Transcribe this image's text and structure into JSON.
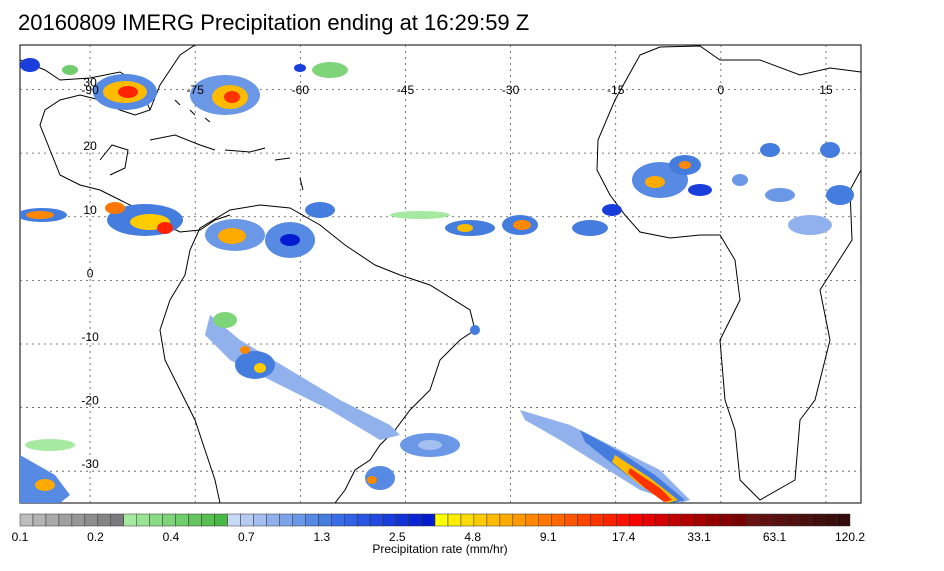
{
  "title": "20160809 IMERG Precipitation ending at 16:29:59 Z",
  "map": {
    "lon_range": [
      -100,
      20
    ],
    "lat_range": [
      -35,
      37
    ],
    "lon_grid": [
      -90,
      -75,
      -60,
      -45,
      -30,
      -15,
      0,
      15
    ],
    "lon_labels": [
      "-90",
      "-75",
      "-60",
      "-45",
      "-30",
      "-15",
      "0",
      "15"
    ],
    "lat_grid": [
      30,
      20,
      10,
      0,
      -10,
      -20,
      -30
    ],
    "lat_labels": [
      "30",
      "20",
      "10",
      "0",
      "-10",
      "-20",
      "-30"
    ],
    "grid": true,
    "grid_style": "dotted",
    "coastline_color": "#000000",
    "ocean_color": "#ffffff",
    "precip_regions": [
      {
        "name": "gulf-of-mexico-storms",
        "level": 3
      },
      {
        "name": "western-atlantic-storms",
        "level": 3
      },
      {
        "name": "central-america-storms",
        "level": 3
      },
      {
        "name": "itcz-atlantic",
        "level": 2
      },
      {
        "name": "west-africa-storms",
        "level": 3
      },
      {
        "name": "amazon-storms",
        "level": 2
      },
      {
        "name": "south-america-band",
        "level": 2
      },
      {
        "name": "south-atlantic-front",
        "level": 3
      },
      {
        "name": "southwest-pacific-storms",
        "level": 2
      }
    ]
  },
  "colorbar": {
    "label": "Precipitation rate (mm/hr)",
    "tick_labels": [
      "0.1",
      "0.2",
      "0.4",
      "0.7",
      "1.3",
      "2.5",
      "4.8",
      "9.1",
      "17.4",
      "33.1",
      "63.1",
      "120.2"
    ],
    "groups": [
      {
        "name": "gray",
        "colors": [
          "#bdbdbd",
          "#b3b3b3",
          "#aaaaaa",
          "#a0a0a0",
          "#979797",
          "#8d8d8d",
          "#848484",
          "#7a7a7a"
        ]
      },
      {
        "name": "green",
        "colors": [
          "#a6e9a0",
          "#98e293",
          "#8bdb86",
          "#7ed479",
          "#71cd6c",
          "#64c65f",
          "#57bf52",
          "#4ab845"
        ]
      },
      {
        "name": "light-blue",
        "colors": [
          "#c9d8f5",
          "#b6cbf2",
          "#a3beef",
          "#90b1ec",
          "#7da4e9",
          "#6a97e6",
          "#578ae3",
          "#447dde"
        ]
      },
      {
        "name": "blue",
        "colors": [
          "#3a6ee8",
          "#3262e6",
          "#2a56e3",
          "#224ae0",
          "#1a3edc",
          "#1232d8",
          "#0a26d4",
          "#021ad0"
        ]
      },
      {
        "name": "yellow",
        "colors": [
          "#fffe00",
          "#ffee00",
          "#ffdd00",
          "#ffcc00",
          "#ffbb00",
          "#ffaa00",
          "#ff9900",
          "#ff8800"
        ]
      },
      {
        "name": "orange-red",
        "colors": [
          "#ff7700",
          "#ff6600",
          "#ff5500",
          "#ff4400",
          "#ff3300",
          "#ff2200",
          "#ff1100",
          "#ff0000"
        ]
      },
      {
        "name": "dark-red",
        "colors": [
          "#e80000",
          "#d40000",
          "#c40000",
          "#b40000",
          "#a40000",
          "#940000",
          "#860000",
          "#780000"
        ]
      },
      {
        "name": "maroon",
        "colors": [
          "#6a1212",
          "#621111",
          "#5a1010",
          "#520f0f",
          "#4a0e0e",
          "#420d0d",
          "#3a0c0c",
          "#320b0b"
        ]
      }
    ]
  }
}
